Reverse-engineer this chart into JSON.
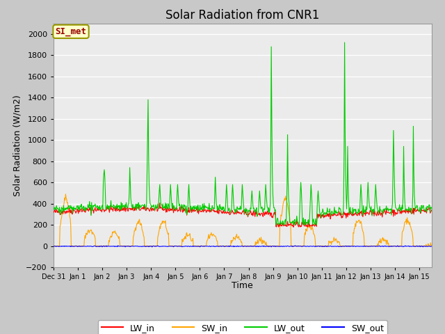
{
  "title": "Solar Radiation from CNR1",
  "xlabel": "Time",
  "ylabel": "Solar Radiation (W/m2)",
  "ylim": [
    -200,
    2100
  ],
  "yticks": [
    -200,
    0,
    200,
    400,
    600,
    800,
    1000,
    1200,
    1400,
    1600,
    1800,
    2000
  ],
  "colors": {
    "LW_in": "#ff0000",
    "SW_in": "#ffa500",
    "LW_out": "#00cc00",
    "SW_out": "#0000ff"
  },
  "axes_facecolor": "#ebebeb",
  "figure_facecolor": "#c8c8c8",
  "grid_color": "#ffffff",
  "label_box": "SI_met",
  "label_box_facecolor": "#ffffcc",
  "label_box_edgecolor": "#999900",
  "label_box_text_color": "#990000",
  "title_fontsize": 12,
  "tick_fontsize": 7,
  "axis_label_fontsize": 9,
  "legend_fontsize": 9,
  "tick_positions": [
    0,
    1,
    2,
    3,
    4,
    5,
    6,
    7,
    8,
    9,
    10,
    11,
    12,
    13,
    14,
    15
  ],
  "tick_labels": [
    "Dec 31",
    "Jan 1",
    "Jan 2",
    "Jan 3",
    "Jan 4",
    "Jan 5",
    "Jan 6",
    "Jan 7",
    "Jan 8",
    "Jan 9",
    "Jan 10",
    "Jan 11",
    "Jan 12",
    "Jan 13",
    "Jan 14",
    "Jan 15"
  ],
  "xlim": [
    0,
    15.5
  ],
  "linewidth": 0.8
}
